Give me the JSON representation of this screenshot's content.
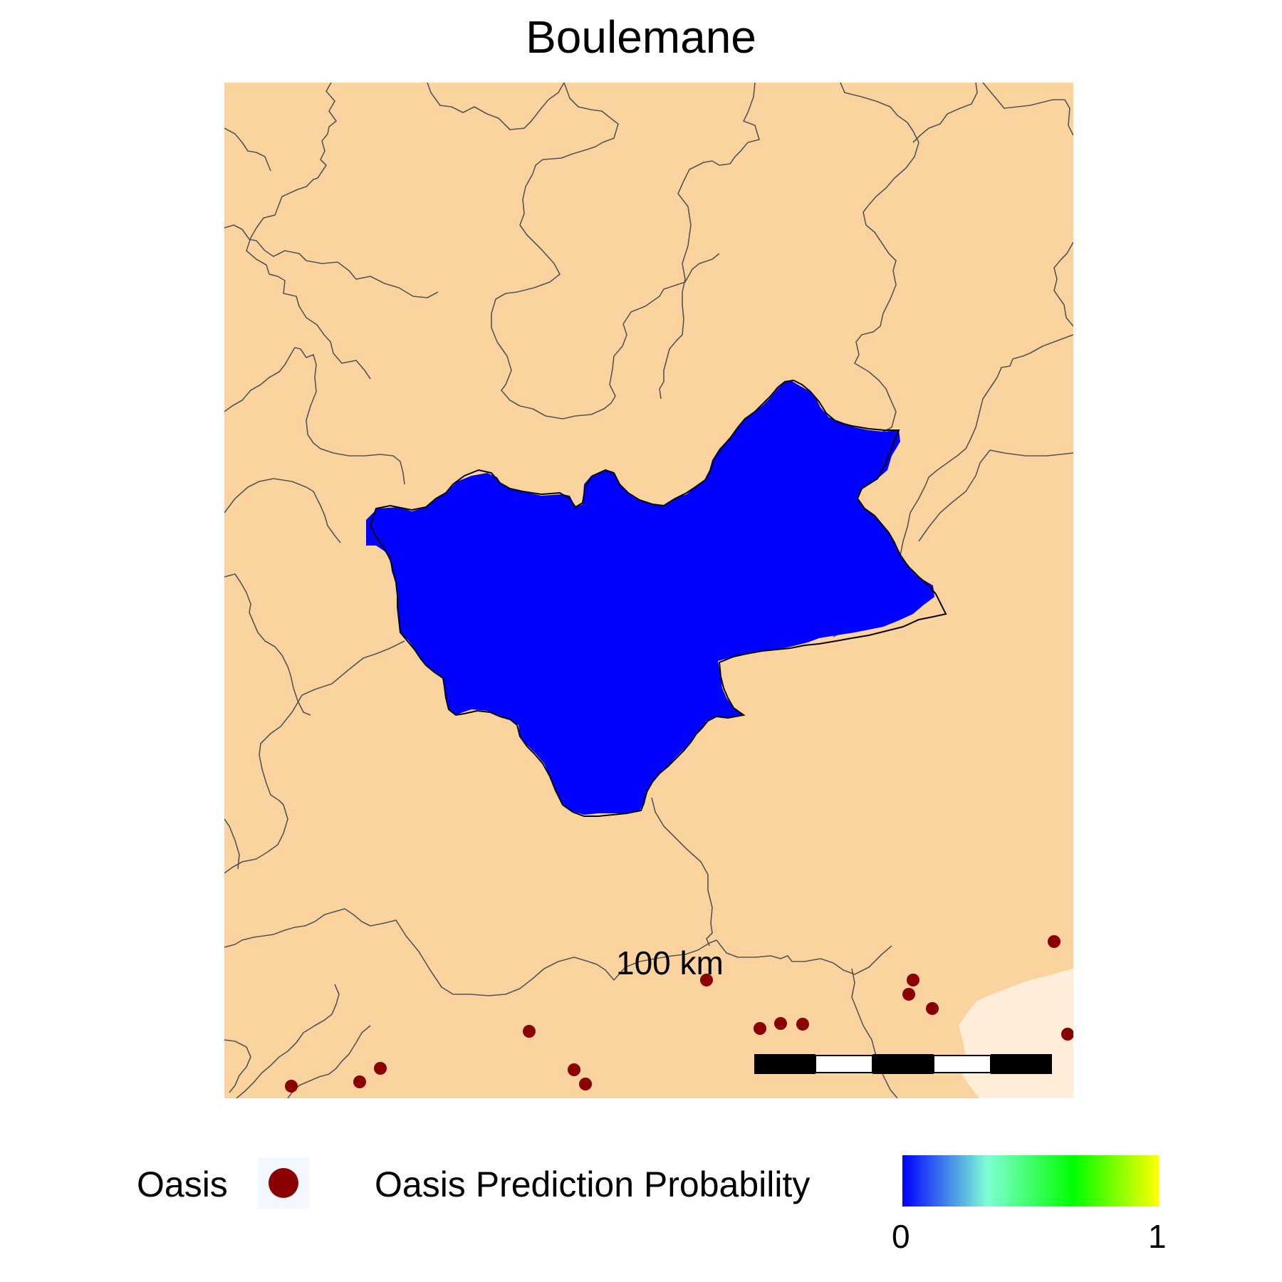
{
  "title": "Boulemane",
  "colors": {
    "background": "#ffffff",
    "land": "#fbd39f",
    "land_light": "#feeed9",
    "boundary": "#555555",
    "region_fill": "#0000ff",
    "region_outline": "#000000",
    "oasis_point": "#8b0000"
  },
  "scale_bar": {
    "label": "100 km",
    "segments": 5
  },
  "legend": {
    "oasis_label": "Oasis",
    "probability_label": "Oasis Prediction Probability",
    "colorbar_min": "0",
    "colorbar_max": "1",
    "colorbar_stops": [
      "#0000ff",
      "#7fffd4",
      "#00ff00",
      "#ffff00"
    ]
  },
  "icons": {
    "oasis_marker": "filled-circle-icon"
  }
}
